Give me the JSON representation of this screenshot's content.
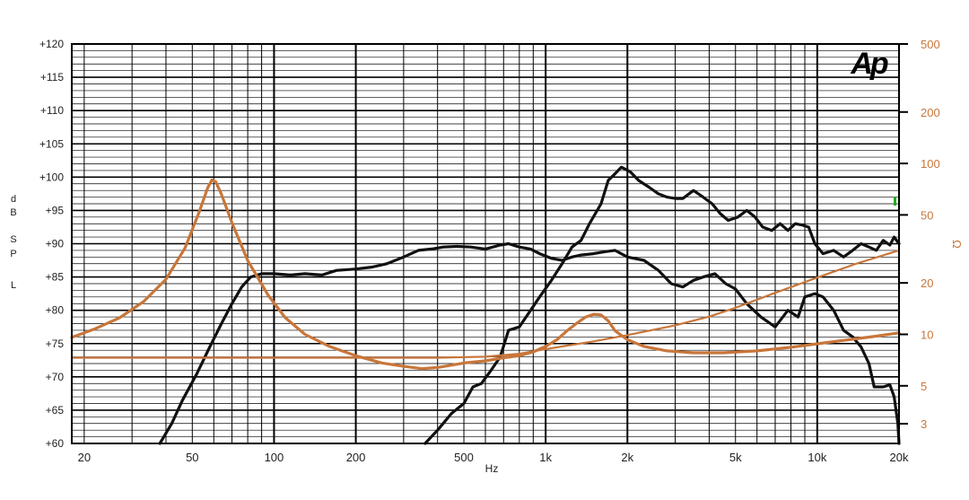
{
  "logo": "Ap",
  "chart_data": {
    "type": "line",
    "x_scale": "log",
    "xlim": [
      18,
      20000
    ],
    "xlabel": "Hz",
    "ylabel_left": [
      "d",
      "B",
      "S",
      "P",
      "L"
    ],
    "ylim_left": [
      60,
      120
    ],
    "ylabel_right": "Ω",
    "y2_scale": "log",
    "ylim_right": [
      2.3,
      500
    ],
    "grid": true,
    "x_ticks": [
      {
        "value": 20,
        "label": "20"
      },
      {
        "value": 50,
        "label": "50"
      },
      {
        "value": 100,
        "label": "100"
      },
      {
        "value": 200,
        "label": "200"
      },
      {
        "value": 500,
        "label": "500"
      },
      {
        "value": 1000,
        "label": "1k"
      },
      {
        "value": 2000,
        "label": "2k"
      },
      {
        "value": 5000,
        "label": "5k"
      },
      {
        "value": 10000,
        "label": "10k"
      },
      {
        "value": 20000,
        "label": "20k"
      }
    ],
    "y_ticks_left": [
      {
        "value": 120,
        "label": "+120"
      },
      {
        "value": 115,
        "label": "+115"
      },
      {
        "value": 110,
        "label": "+110"
      },
      {
        "value": 105,
        "label": "+105"
      },
      {
        "value": 100,
        "label": "+100"
      },
      {
        "value": 95,
        "label": "+95"
      },
      {
        "value": 90,
        "label": "+90"
      },
      {
        "value": 85,
        "label": "+85"
      },
      {
        "value": 80,
        "label": "+80"
      },
      {
        "value": 75,
        "label": "+75"
      },
      {
        "value": 70,
        "label": "+70"
      },
      {
        "value": 65,
        "label": "+65"
      },
      {
        "value": 60,
        "label": "+60"
      }
    ],
    "y_ticks_right": [
      {
        "value": 500,
        "label": "500"
      },
      {
        "value": 200,
        "label": "200"
      },
      {
        "value": 100,
        "label": "100"
      },
      {
        "value": 50,
        "label": "50"
      },
      {
        "value": 20,
        "label": "20"
      },
      {
        "value": 10,
        "label": "10"
      },
      {
        "value": 5,
        "label": "5"
      },
      {
        "value": 3,
        "label": "3"
      }
    ],
    "series": [
      {
        "axis": "left",
        "color": "#111111",
        "width": 3.2,
        "points": [
          [
            38,
            60
          ],
          [
            42,
            63
          ],
          [
            46,
            66.5
          ],
          [
            52,
            70.5
          ],
          [
            58,
            74.5
          ],
          [
            64,
            78
          ],
          [
            70,
            81
          ],
          [
            76,
            83.5
          ],
          [
            82,
            85
          ],
          [
            90,
            85.5
          ],
          [
            100,
            85.5
          ],
          [
            115,
            85.3
          ],
          [
            130,
            85.5
          ],
          [
            150,
            85.3
          ],
          [
            170,
            86
          ],
          [
            200,
            86.2
          ],
          [
            230,
            86.5
          ],
          [
            260,
            87
          ],
          [
            300,
            88
          ],
          [
            340,
            89
          ],
          [
            380,
            89.2
          ],
          [
            420,
            89.5
          ],
          [
            470,
            89.6
          ],
          [
            530,
            89.5
          ],
          [
            600,
            89.2
          ],
          [
            680,
            89.8
          ],
          [
            730,
            90
          ],
          [
            800,
            89.5
          ],
          [
            880,
            89.2
          ],
          [
            950,
            88.5
          ],
          [
            1050,
            87.8
          ],
          [
            1150,
            87.5
          ],
          [
            1250,
            88
          ],
          [
            1350,
            88.3
          ],
          [
            1500,
            88.5
          ],
          [
            1650,
            88.8
          ],
          [
            1800,
            89
          ],
          [
            2000,
            88
          ],
          [
            2300,
            87.5
          ],
          [
            2600,
            86
          ],
          [
            2900,
            84
          ],
          [
            3200,
            83.5
          ],
          [
            3500,
            84.5
          ],
          [
            3800,
            85
          ],
          [
            4200,
            85.5
          ],
          [
            4600,
            84
          ],
          [
            5000,
            83.2
          ],
          [
            5500,
            81
          ],
          [
            6200,
            79
          ],
          [
            7000,
            77.5
          ],
          [
            7800,
            80
          ],
          [
            8500,
            79
          ],
          [
            9000,
            82
          ],
          [
            9800,
            82.5
          ],
          [
            10500,
            82
          ],
          [
            11500,
            80
          ],
          [
            12500,
            77
          ],
          [
            13500,
            76
          ],
          [
            14500,
            74.5
          ],
          [
            15500,
            72
          ],
          [
            16200,
            68.5
          ],
          [
            17500,
            68.5
          ],
          [
            18500,
            68.8
          ],
          [
            19200,
            67
          ],
          [
            19800,
            63
          ],
          [
            20000,
            60
          ]
        ]
      },
      {
        "axis": "left",
        "color": "#111111",
        "width": 3.2,
        "points": [
          [
            360,
            60
          ],
          [
            400,
            62
          ],
          [
            450,
            64.5
          ],
          [
            500,
            66
          ],
          [
            540,
            68.5
          ],
          [
            580,
            69
          ],
          [
            630,
            71
          ],
          [
            680,
            73
          ],
          [
            730,
            77
          ],
          [
            800,
            77.5
          ],
          [
            880,
            80
          ],
          [
            950,
            82
          ],
          [
            1050,
            84.5
          ],
          [
            1150,
            87
          ],
          [
            1250,
            89.5
          ],
          [
            1350,
            90.5
          ],
          [
            1450,
            93
          ],
          [
            1600,
            96
          ],
          [
            1700,
            99.5
          ],
          [
            1800,
            100.5
          ],
          [
            1900,
            101.5
          ],
          [
            2050,
            100.8
          ],
          [
            2200,
            99.5
          ],
          [
            2400,
            98.5
          ],
          [
            2600,
            97.5
          ],
          [
            2800,
            97
          ],
          [
            3000,
            96.8
          ],
          [
            3200,
            96.8
          ],
          [
            3500,
            98
          ],
          [
            3800,
            97
          ],
          [
            4100,
            96
          ],
          [
            4400,
            94.5
          ],
          [
            4700,
            93.5
          ],
          [
            5100,
            94
          ],
          [
            5500,
            95
          ],
          [
            5900,
            94
          ],
          [
            6300,
            92.5
          ],
          [
            6800,
            92
          ],
          [
            7300,
            93
          ],
          [
            7800,
            92
          ],
          [
            8300,
            93
          ],
          [
            8800,
            92.8
          ],
          [
            9300,
            92.5
          ],
          [
            9800,
            90
          ],
          [
            10500,
            88.5
          ],
          [
            11500,
            89
          ],
          [
            12500,
            88
          ],
          [
            13500,
            89
          ],
          [
            14500,
            90
          ],
          [
            15500,
            89.5
          ],
          [
            16500,
            89
          ],
          [
            17500,
            90.5
          ],
          [
            18500,
            89.8
          ],
          [
            19200,
            91
          ],
          [
            20000,
            90
          ]
        ]
      },
      {
        "axis": "right",
        "color": "#c8763a",
        "width": 3.2,
        "points": [
          [
            18,
            9.6
          ],
          [
            22,
            10.8
          ],
          [
            27,
            12.5
          ],
          [
            33,
            15.5
          ],
          [
            40,
            21
          ],
          [
            47,
            32
          ],
          [
            53,
            52
          ],
          [
            57,
            72
          ],
          [
            59,
            80
          ],
          [
            61,
            78
          ],
          [
            64,
            66
          ],
          [
            70,
            45
          ],
          [
            80,
            27
          ],
          [
            95,
            17
          ],
          [
            110,
            12.5
          ],
          [
            130,
            10
          ],
          [
            160,
            8.5
          ],
          [
            200,
            7.5
          ],
          [
            250,
            6.8
          ],
          [
            300,
            6.5
          ],
          [
            350,
            6.3
          ],
          [
            400,
            6.4
          ],
          [
            450,
            6.6
          ],
          [
            500,
            6.8
          ],
          [
            600,
            7
          ],
          [
            700,
            7.3
          ],
          [
            800,
            7.5
          ],
          [
            900,
            7.9
          ],
          [
            1000,
            8.5
          ],
          [
            1100,
            9.3
          ],
          [
            1200,
            10.5
          ],
          [
            1300,
            11.6
          ],
          [
            1400,
            12.6
          ],
          [
            1500,
            13.1
          ],
          [
            1600,
            13
          ],
          [
            1700,
            12
          ],
          [
            1800,
            10.5
          ],
          [
            2000,
            9.3
          ],
          [
            2300,
            8.5
          ],
          [
            2800,
            8
          ],
          [
            3500,
            7.8
          ],
          [
            4500,
            7.8
          ],
          [
            6000,
            8
          ],
          [
            8000,
            8.4
          ],
          [
            10000,
            8.8
          ],
          [
            13000,
            9.3
          ],
          [
            16000,
            9.7
          ],
          [
            20000,
            10.2
          ]
        ]
      },
      {
        "axis": "right",
        "color": "#c8763a",
        "width": 2.2,
        "points": [
          [
            18,
            7.3
          ],
          [
            50,
            7.3
          ],
          [
            100,
            7.3
          ],
          [
            200,
            7.3
          ],
          [
            400,
            7.3
          ],
          [
            600,
            7.4
          ],
          [
            800,
            7.7
          ],
          [
            1000,
            8.2
          ],
          [
            1500,
            9.1
          ],
          [
            2000,
            9.9
          ],
          [
            3000,
            11.3
          ],
          [
            4000,
            12.7
          ],
          [
            5000,
            14.3
          ],
          [
            7000,
            17.5
          ],
          [
            10000,
            21.5
          ],
          [
            14000,
            26
          ],
          [
            20000,
            31
          ]
        ]
      }
    ]
  }
}
